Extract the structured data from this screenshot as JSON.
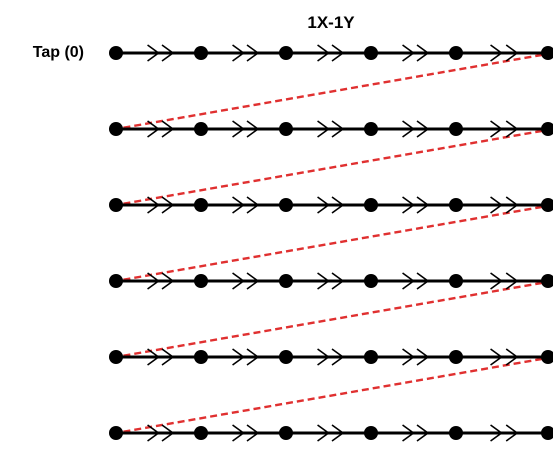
{
  "title": "1X-1Y",
  "row_label": "Tap (0)",
  "grid": {
    "rows": 6,
    "nodes_per_row": 6
  },
  "colors": {
    "line": "#000000",
    "node": "#000000",
    "wrap_link": "#e03030"
  }
}
